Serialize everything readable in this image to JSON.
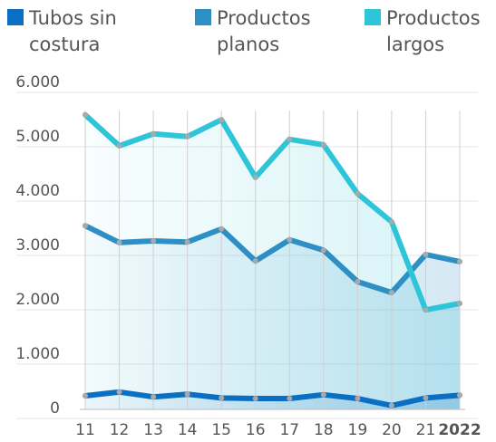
{
  "chart_data": {
    "type": "line",
    "categories": [
      "11",
      "12",
      "13",
      "14",
      "15",
      "16",
      "17",
      "18",
      "19",
      "20",
      "21",
      "2022"
    ],
    "series": [
      {
        "name": "Tubos sin costura",
        "color": "#0a6fc2",
        "values": [
          250,
          320,
          230,
          280,
          210,
          200,
          200,
          270,
          200,
          70,
          210,
          260
        ]
      },
      {
        "name": "Productos planos",
        "color": "#2e8fc4",
        "values": [
          3380,
          3070,
          3100,
          3080,
          3320,
          2730,
          3120,
          2930,
          2350,
          2150,
          2850,
          2720
        ]
      },
      {
        "name": "Productos largos",
        "color": "#2ec5d8",
        "values": [
          5420,
          4850,
          5070,
          5020,
          5330,
          4270,
          4970,
          4870,
          3970,
          3450,
          1830,
          1950
        ]
      }
    ],
    "ylim": [
      0,
      6000
    ],
    "yticks": [
      0,
      {
        "value": 1000,
        "label": "1.000"
      },
      {
        "value": 2000,
        "label": "2.000"
      },
      {
        "value": 3000,
        "label": "3.000"
      },
      {
        "value": 4000,
        "label": "4.000"
      },
      {
        "value": 5000,
        "label": "5.000"
      },
      {
        "value": 6000,
        "label": "6.000"
      }
    ],
    "grid": true
  }
}
